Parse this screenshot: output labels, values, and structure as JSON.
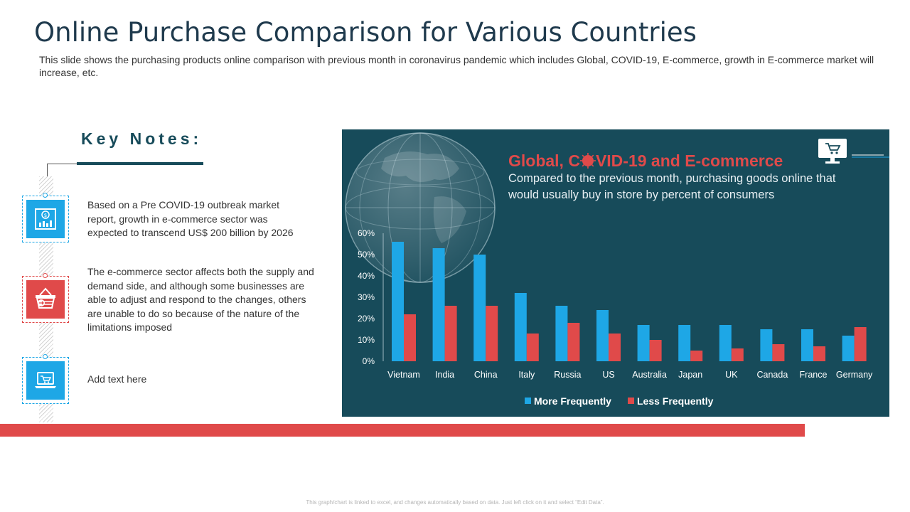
{
  "slide": {
    "title": "Online Purchase Comparison for Various Countries",
    "subtitle": "This slide shows the purchasing products online comparison with previous month in coronavirus pandemic which includes Global,  COVID-19, E-commerce, growth in E-commerce market will increase, etc.",
    "footer": "This graph/chart is linked to excel, and changes automatically based on data. Just left click on it and select “Edit Data”."
  },
  "key_notes": {
    "heading": "Key Notes:",
    "items": [
      {
        "icon": "money-chart-icon",
        "color": "#1ea7e6",
        "text": "Based on a Pre COVID-19 outbreak market report, growth in e-commerce sector was expected to transcend US$ 200 billion by 2026"
      },
      {
        "icon": "shopping-basket-icon",
        "color": "#e04a4a",
        "text": "The e-commerce sector affects both the supply and demand side, and although some businesses are able to adjust and respond to the changes, others are unable to do so because of the nature of the limitations imposed"
      },
      {
        "icon": "laptop-cart-icon",
        "color": "#1ea7e6",
        "text": "Add text here"
      }
    ]
  },
  "panel": {
    "heading_before": "Global, C",
    "heading_after": "VID-19 and E-commerce",
    "description_line1": "Compared to the previous month, purchasing goods online that",
    "description_line2": "would usually buy in store by percent of consumers",
    "icons": [
      "globe-icon",
      "virus-icon",
      "computer-cart-icon"
    ],
    "colors": {
      "background": "#174b5a",
      "heading": "#e04a4a",
      "text": "#e6eef2"
    }
  },
  "chart_data": {
    "type": "bar",
    "categories": [
      "Vietnam",
      "India",
      "China",
      "Italy",
      "Russia",
      "US",
      "Australia",
      "Japan",
      "UK",
      "Canada",
      "France",
      "Germany"
    ],
    "series": [
      {
        "name": "More Frequently",
        "color": "#1ea7e6",
        "values": [
          56,
          53,
          50,
          32,
          26,
          24,
          17,
          17,
          17,
          15,
          15,
          12
        ]
      },
      {
        "name": "Less Frequently",
        "color": "#e04a4a",
        "values": [
          22,
          26,
          26,
          13,
          18,
          13,
          10,
          5,
          6,
          8,
          7,
          16
        ]
      }
    ],
    "ylim": [
      0,
      60
    ],
    "yticks": [
      "0%",
      "10%",
      "20%",
      "30%",
      "40%",
      "50%",
      "60%"
    ],
    "legend": "bottom"
  }
}
